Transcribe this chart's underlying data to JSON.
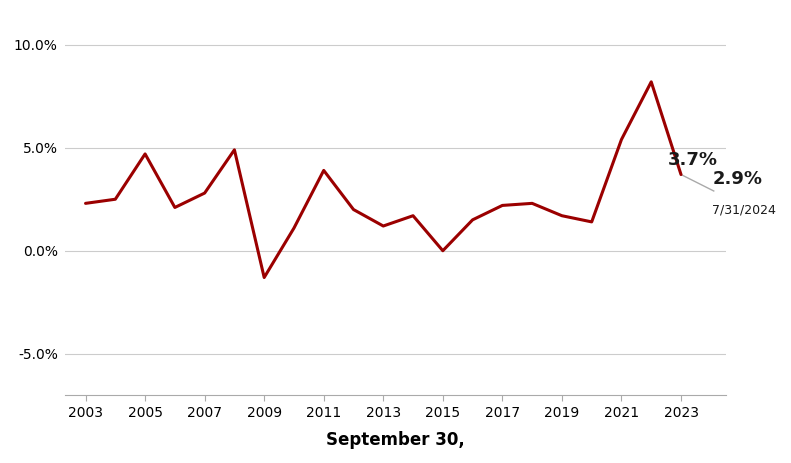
{
  "years": [
    2003,
    2004,
    2005,
    2006,
    2007,
    2008,
    2009,
    2010,
    2011,
    2012,
    2013,
    2014,
    2015,
    2016,
    2017,
    2018,
    2019,
    2020,
    2021,
    2022,
    2023
  ],
  "values": [
    2.3,
    2.5,
    4.7,
    2.1,
    2.8,
    4.9,
    -1.3,
    1.1,
    3.9,
    2.0,
    1.2,
    1.7,
    0.0,
    1.5,
    2.2,
    2.3,
    1.7,
    1.4,
    5.4,
    8.2,
    3.7
  ],
  "extra_year": 2024.1,
  "extra_value": 2.9,
  "extra_label": "2.9%",
  "extra_date_label": "7/31/2024",
  "last_sep_label": "3.7%",
  "line_color": "#9B0000",
  "connector_color": "#aaaaaa",
  "line_width": 2.2,
  "ylim": [
    -7.0,
    11.5
  ],
  "yticks": [
    -5.0,
    0.0,
    5.0,
    10.0
  ],
  "ytick_labels": [
    "-5.0%",
    "0.0%",
    "5.0%",
    "10.0%"
  ],
  "xlabel": "September 30,",
  "background_color": "#ffffff",
  "grid_color": "#cccccc",
  "annotation_fontsize": 13,
  "annotation_color": "#1a1a1a"
}
